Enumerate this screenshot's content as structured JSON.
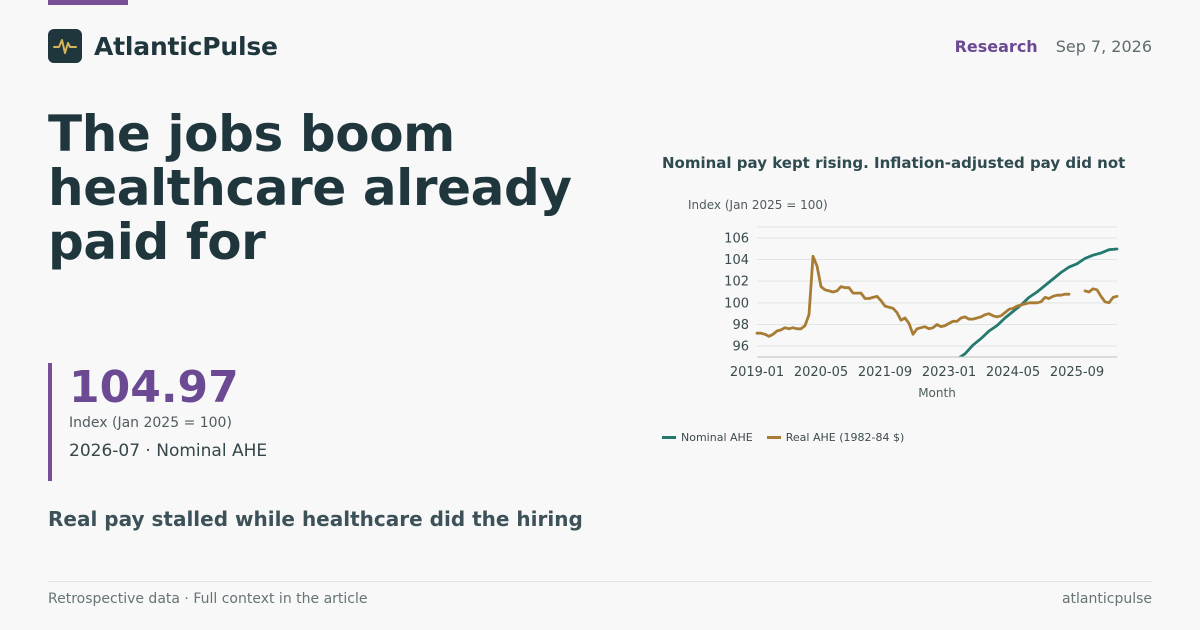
{
  "brand": {
    "name": "AtlanticPulse",
    "logo_icon": "pulse-icon"
  },
  "header": {
    "section": "Research",
    "date": "Sep 7, 2026"
  },
  "headline": "The jobs boom healthcare already paid for",
  "kpi": {
    "value": "104.97",
    "unit": "Index (Jan 2025 = 100)",
    "caption": "2026-07 · Nominal AHE"
  },
  "subhead": "Real pay stalled while healthcare did the hiring",
  "footer": {
    "left": "Retrospective data · Full context in the article",
    "right": "atlanticpulse"
  },
  "colors": {
    "accent": "#7a4e96",
    "nominal": "#24796e",
    "real": "#a87c35",
    "text": "#1f363d"
  },
  "chart_data": {
    "type": "line",
    "title": "Nominal pay kept rising. Inflation-adjusted pay did not",
    "ylabel": "Index (Jan 2025 = 100)",
    "xlabel": "Month",
    "x_ticks": [
      "2019-01",
      "2020-05",
      "2021-09",
      "2023-01",
      "2024-05",
      "2025-09"
    ],
    "y_ticks": [
      96,
      98,
      100,
      102,
      104,
      106
    ],
    "ylim": [
      95,
      107
    ],
    "grid": true,
    "legend": "bottom-left",
    "series": [
      {
        "name": "Nominal AHE",
        "color": "#24796e",
        "points": [
          [
            "2023-03",
            94.8
          ],
          [
            "2023-05",
            95.3
          ],
          [
            "2023-07",
            96.1
          ],
          [
            "2023-09",
            96.7
          ],
          [
            "2023-11",
            97.4
          ],
          [
            "2024-01",
            97.9
          ],
          [
            "2024-03",
            98.6
          ],
          [
            "2024-05",
            99.2
          ],
          [
            "2024-07",
            99.8
          ],
          [
            "2024-09",
            100.5
          ],
          [
            "2024-11",
            101.0
          ],
          [
            "2025-01",
            101.6
          ],
          [
            "2025-03",
            102.2
          ],
          [
            "2025-05",
            102.8
          ],
          [
            "2025-07",
            103.3
          ],
          [
            "2025-09",
            103.6
          ],
          [
            "2025-11",
            104.1
          ],
          [
            "2026-01",
            104.4
          ],
          [
            "2026-03",
            104.6
          ],
          [
            "2026-05",
            104.9
          ],
          [
            "2026-07",
            104.97
          ]
        ]
      },
      {
        "name": "Real AHE (1982-84 $)",
        "color": "#a87c35",
        "points": [
          [
            "2019-01",
            97.2
          ],
          [
            "2019-02",
            97.2
          ],
          [
            "2019-03",
            97.1
          ],
          [
            "2019-04",
            96.9
          ],
          [
            "2019-05",
            97.1
          ],
          [
            "2019-06",
            97.4
          ],
          [
            "2019-07",
            97.5
          ],
          [
            "2019-08",
            97.7
          ],
          [
            "2019-09",
            97.6
          ],
          [
            "2019-10",
            97.7
          ],
          [
            "2019-11",
            97.6
          ],
          [
            "2019-12",
            97.6
          ],
          [
            "2020-01",
            97.9
          ],
          [
            "2020-02",
            98.9
          ],
          [
            "2020-03",
            104.3
          ],
          [
            "2020-04",
            103.4
          ],
          [
            "2020-05",
            101.5
          ],
          [
            "2020-06",
            101.2
          ],
          [
            "2020-07",
            101.1
          ],
          [
            "2020-08",
            101.0
          ],
          [
            "2020-09",
            101.1
          ],
          [
            "2020-10",
            101.5
          ],
          [
            "2020-11",
            101.4
          ],
          [
            "2020-12",
            101.4
          ],
          [
            "2021-01",
            100.9
          ],
          [
            "2021-02",
            100.9
          ],
          [
            "2021-03",
            100.9
          ],
          [
            "2021-04",
            100.4
          ],
          [
            "2021-05",
            100.4
          ],
          [
            "2021-06",
            100.5
          ],
          [
            "2021-07",
            100.6
          ],
          [
            "2021-08",
            100.2
          ],
          [
            "2021-09",
            99.7
          ],
          [
            "2021-10",
            99.6
          ],
          [
            "2021-11",
            99.5
          ],
          [
            "2021-12",
            99.1
          ],
          [
            "2022-01",
            98.4
          ],
          [
            "2022-02",
            98.6
          ],
          [
            "2022-03",
            98.1
          ],
          [
            "2022-04",
            97.1
          ],
          [
            "2022-05",
            97.6
          ],
          [
            "2022-06",
            97.7
          ],
          [
            "2022-07",
            97.8
          ],
          [
            "2022-08",
            97.6
          ],
          [
            "2022-09",
            97.7
          ],
          [
            "2022-10",
            98.0
          ],
          [
            "2022-11",
            97.8
          ],
          [
            "2022-12",
            97.9
          ],
          [
            "2023-01",
            98.1
          ],
          [
            "2023-02",
            98.3
          ],
          [
            "2023-03",
            98.3
          ],
          [
            "2023-04",
            98.6
          ],
          [
            "2023-05",
            98.7
          ],
          [
            "2023-06",
            98.5
          ],
          [
            "2023-07",
            98.5
          ],
          [
            "2023-08",
            98.6
          ],
          [
            "2023-09",
            98.7
          ],
          [
            "2023-10",
            98.9
          ],
          [
            "2023-11",
            99.0
          ],
          [
            "2023-12",
            98.8
          ],
          [
            "2024-01",
            98.7
          ],
          [
            "2024-02",
            98.8
          ],
          [
            "2024-03",
            99.1
          ],
          [
            "2024-04",
            99.4
          ],
          [
            "2024-05",
            99.5
          ],
          [
            "2024-06",
            99.7
          ],
          [
            "2024-07",
            99.8
          ],
          [
            "2024-08",
            99.9
          ],
          [
            "2024-09",
            100.0
          ],
          [
            "2024-10",
            100.0
          ],
          [
            "2024-11",
            100.0
          ],
          [
            "2024-12",
            100.1
          ],
          [
            "2025-01",
            100.5
          ],
          [
            "2025-02",
            100.4
          ],
          [
            "2025-03",
            100.6
          ],
          [
            "2025-04",
            100.7
          ],
          [
            "2025-05",
            100.7
          ],
          [
            "2025-06",
            100.8
          ],
          [
            "2025-07",
            100.8
          ],
          null,
          [
            "2025-11",
            101.1
          ],
          [
            "2025-12",
            101.0
          ],
          [
            "2026-01",
            101.3
          ],
          [
            "2026-02",
            101.2
          ],
          [
            "2026-03",
            100.6
          ],
          [
            "2026-04",
            100.1
          ],
          [
            "2026-05",
            100.0
          ],
          [
            "2026-06",
            100.5
          ],
          [
            "2026-07",
            100.6
          ]
        ]
      }
    ]
  }
}
